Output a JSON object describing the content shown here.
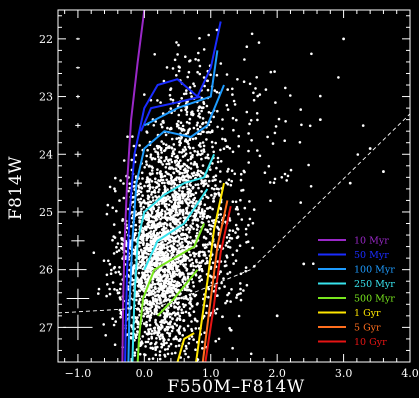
{
  "chart_data": {
    "type": "scatter",
    "xlabel": "F550M–F814W",
    "ylabel": "F814W",
    "xlim": [
      -1.3,
      4.0
    ],
    "ylim": [
      27.6,
      21.5
    ],
    "y_inverted": true,
    "x_ticks": [
      -1.0,
      0.0,
      1.0,
      2.0,
      3.0,
      4.0
    ],
    "x_tick_labels": [
      "−1.0",
      "0.0",
      "1.0",
      "2.0",
      "3.0",
      "4.0"
    ],
    "y_ticks": [
      22,
      23,
      24,
      25,
      26,
      27
    ],
    "y_tick_labels": [
      "22",
      "23",
      "24",
      "25",
      "26",
      "27"
    ],
    "grid": false,
    "legend_position": "bottom-right",
    "background": "#000000",
    "point_color": "#ffffff",
    "error_bars": {
      "x": -1.0,
      "magnitudes": [
        22.0,
        22.5,
        23.0,
        23.5,
        24.0,
        24.5,
        25.0,
        25.5,
        26.0,
        26.5,
        27.0
      ],
      "x_err": [
        0.02,
        0.02,
        0.03,
        0.04,
        0.05,
        0.06,
        0.08,
        0.1,
        0.13,
        0.17,
        0.22
      ],
      "y_err": [
        0.02,
        0.02,
        0.03,
        0.04,
        0.05,
        0.06,
        0.08,
        0.1,
        0.13,
        0.17,
        0.22
      ]
    },
    "completeness_line": {
      "style": "dashed",
      "points": [
        [
          -1.3,
          26.75
        ],
        [
          0.2,
          26.65
        ],
        [
          1.6,
          26.0
        ],
        [
          4.0,
          23.3
        ]
      ]
    },
    "isochrones": [
      {
        "name": "10 Myr",
        "color": "#9a28c8",
        "branches": [
          [
            [
              0.0,
              21.5
            ],
            [
              -0.1,
              22.4
            ],
            [
              -0.2,
              23.4
            ],
            [
              -0.26,
              24.5
            ],
            [
              -0.3,
              25.6
            ],
            [
              -0.32,
              26.6
            ],
            [
              -0.33,
              27.6
            ]
          ]
        ]
      },
      {
        "name": "50 Myr",
        "color": "#1a2cff",
        "branches": [
          [
            [
              1.15,
              21.7
            ],
            [
              1.0,
              22.5
            ],
            [
              0.8,
              23.0
            ],
            [
              0.5,
              22.7
            ],
            [
              0.2,
              22.8
            ],
            [
              0.0,
              23.2
            ],
            [
              -0.15,
              24.0
            ],
            [
              -0.22,
              25.0
            ],
            [
              -0.26,
              26.0
            ],
            [
              -0.28,
              27.0
            ],
            [
              -0.29,
              27.6
            ]
          ],
          [
            [
              0.85,
              23.0
            ],
            [
              0.5,
              23.1
            ],
            [
              0.1,
              23.2
            ],
            [
              -0.05,
              23.6
            ]
          ]
        ]
      },
      {
        "name": "100 Myr",
        "color": "#1e9cff",
        "branches": [
          [
            [
              1.2,
              22.8
            ],
            [
              0.95,
              23.5
            ],
            [
              0.7,
              23.7
            ],
            [
              0.3,
              23.6
            ],
            [
              0.0,
              23.9
            ],
            [
              -0.12,
              24.5
            ],
            [
              -0.18,
              25.5
            ],
            [
              -0.22,
              26.5
            ],
            [
              -0.24,
              27.6
            ]
          ],
          [
            [
              1.1,
              22.2
            ],
            [
              1.0,
              23.0
            ],
            [
              0.5,
              23.2
            ],
            [
              0.0,
              23.5
            ]
          ]
        ]
      },
      {
        "name": "250 Myr",
        "color": "#38e4ee",
        "branches": [
          [
            [
              1.05,
              24.0
            ],
            [
              0.9,
              24.4
            ],
            [
              0.6,
              24.5
            ],
            [
              0.3,
              24.7
            ],
            [
              0.0,
              25.0
            ],
            [
              -0.1,
              25.5
            ],
            [
              -0.15,
              26.5
            ],
            [
              -0.18,
              27.6
            ]
          ],
          [
            [
              0.95,
              24.6
            ],
            [
              0.6,
              25.2
            ],
            [
              0.2,
              25.5
            ],
            [
              0.0,
              26.0
            ]
          ]
        ]
      },
      {
        "name": "500 Myr",
        "color": "#78e61e",
        "branches": [
          [
            [
              0.9,
              25.2
            ],
            [
              0.75,
              25.6
            ],
            [
              0.45,
              25.8
            ],
            [
              0.15,
              26.0
            ],
            [
              -0.02,
              26.5
            ],
            [
              -0.08,
              27.2
            ],
            [
              -0.1,
              27.6
            ]
          ],
          [
            [
              0.8,
              26.0
            ],
            [
              0.45,
              26.5
            ],
            [
              0.2,
              26.8
            ]
          ]
        ]
      },
      {
        "name": "1 Gyr",
        "color": "#ffe600",
        "branches": [
          [
            [
              1.2,
              24.5
            ],
            [
              1.05,
              25.3
            ],
            [
              0.95,
              26.2
            ],
            [
              0.85,
              27.0
            ],
            [
              0.78,
              27.6
            ]
          ],
          [
            [
              0.75,
              27.1
            ],
            [
              0.6,
              27.2
            ],
            [
              0.5,
              27.6
            ]
          ]
        ]
      },
      {
        "name": "5 Gyr",
        "color": "#ff6e1e",
        "branches": [
          [
            [
              1.25,
              24.8
            ],
            [
              1.1,
              25.6
            ],
            [
              1.0,
              26.5
            ],
            [
              0.88,
              27.6
            ]
          ]
        ]
      },
      {
        "name": "10 Gyr",
        "color": "#e61414",
        "branches": [
          [
            [
              1.3,
              24.9
            ],
            [
              1.15,
              25.7
            ],
            [
              1.05,
              26.6
            ],
            [
              0.92,
              27.6
            ]
          ]
        ]
      }
    ],
    "legend_entries": [
      {
        "label": "10 Myr",
        "color": "#9a28c8"
      },
      {
        "label": "50 Myr",
        "color": "#1a2cff"
      },
      {
        "label": "100 Myr",
        "color": "#1e9cff"
      },
      {
        "label": "250 Myr",
        "color": "#38e4ee"
      },
      {
        "label": "500 Myr",
        "color": "#78e61e"
      },
      {
        "label": "1 Gyr",
        "color": "#ffe600"
      },
      {
        "label": "5 Gyr",
        "color": "#ff6e1e"
      },
      {
        "label": "10 Gyr",
        "color": "#e61414"
      }
    ],
    "scatter_clusters": [
      {
        "cx": 0.15,
        "cy": 25.8,
        "sx": 0.28,
        "sy": 0.7,
        "n": 1500
      },
      {
        "cx": 0.5,
        "cy": 25.4,
        "sx": 0.3,
        "sy": 0.8,
        "n": 700
      },
      {
        "cx": 0.55,
        "cy": 24.2,
        "sx": 0.3,
        "sy": 0.7,
        "n": 300
      },
      {
        "cx": 0.7,
        "cy": 23.2,
        "sx": 0.25,
        "sy": 0.6,
        "n": 120
      },
      {
        "cx": 1.5,
        "cy": 23.5,
        "sx": 0.35,
        "sy": 0.7,
        "n": 70
      },
      {
        "cx": 1.1,
        "cy": 25.5,
        "sx": 0.25,
        "sy": 0.9,
        "n": 220
      },
      {
        "cx": 2.3,
        "cy": 24.2,
        "sx": 0.5,
        "sy": 0.9,
        "n": 25
      },
      {
        "cx": 0.3,
        "cy": 27.1,
        "sx": 0.3,
        "sy": 0.2,
        "n": 120
      }
    ],
    "isolated_points": [
      [
        3.4,
        23.9
      ],
      [
        2.65,
        23.4
      ],
      [
        3.0,
        22.0
      ],
      [
        3.6,
        24.3
      ],
      [
        -0.05,
        27.3
      ],
      [
        2.0,
        26.8
      ],
      [
        2.4,
        25.9
      ],
      [
        3.1,
        24.5
      ]
    ]
  }
}
